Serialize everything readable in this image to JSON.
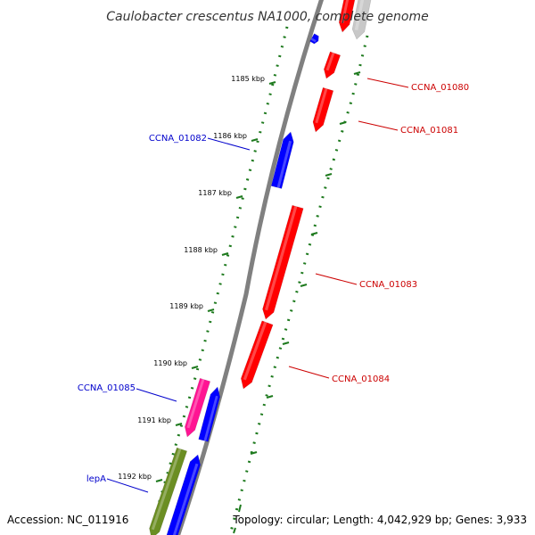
{
  "title": "Caulobacter crescentus NA1000, complete genome",
  "accession": "Accession: NC_011916",
  "topology": "Topology: circular; Length: 4,042,929 bp; Genes: 3,933",
  "colors": {
    "forward_gene": "#ff0000",
    "reverse_gene": "#0000ff",
    "rna_gene": "#ff1493",
    "other_gene": "#6b8e23",
    "grey_gene": "#c8c8c8",
    "backbone": "#808080",
    "tick": "#1e7a1e",
    "forward_label": "#cc0000",
    "reverse_label": "#0000cc"
  },
  "ticks": [
    {
      "label": "1185 kbp"
    },
    {
      "label": "1186 kbp"
    },
    {
      "label": "1187 kbp"
    },
    {
      "label": "1188 kbp"
    },
    {
      "label": "1189 kbp"
    },
    {
      "label": "1190 kbp"
    },
    {
      "label": "1191 kbp"
    },
    {
      "label": "1192 kbp"
    }
  ],
  "gene_labels": [
    {
      "name": "CCNA_01080",
      "strand": "forward"
    },
    {
      "name": "CCNA_01081",
      "strand": "forward"
    },
    {
      "name": "CCNA_01082",
      "strand": "reverse"
    },
    {
      "name": "CCNA_01083",
      "strand": "forward"
    },
    {
      "name": "CCNA_01084",
      "strand": "forward"
    },
    {
      "name": "CCNA_01085",
      "strand": "reverse"
    },
    {
      "name": "lepA",
      "strand": "reverse"
    }
  ]
}
